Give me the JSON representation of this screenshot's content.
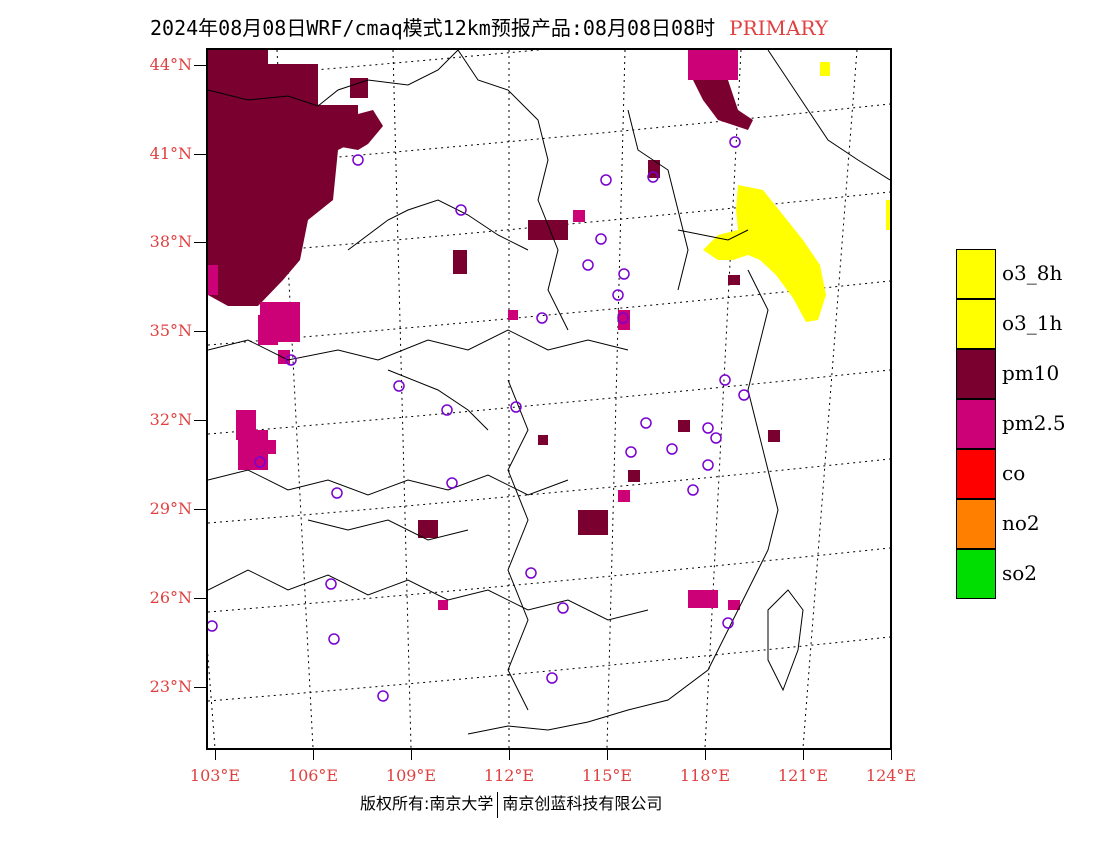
{
  "title": {
    "main": "2024年08月08日WRF/cmaq模式12km预报产品:08月08日08时",
    "tag": "PRIMARY"
  },
  "lat_labels": [
    "44°N",
    "41°N",
    "38°N",
    "35°N",
    "32°N",
    "29°N",
    "26°N",
    "23°N"
  ],
  "lon_labels": [
    "103°E",
    "106°E",
    "109°E",
    "112°E",
    "115°E",
    "118°E",
    "121°E",
    "124°E"
  ],
  "legend": [
    {
      "label": "o3_8h",
      "color": "#ffff00"
    },
    {
      "label": "o3_1h",
      "color": "#ffff00"
    },
    {
      "label": "pm10",
      "color": "#7a0030"
    },
    {
      "label": "pm2.5",
      "color": "#cc0077"
    },
    {
      "label": "co",
      "color": "#ff0000"
    },
    {
      "label": "no2",
      "color": "#ff7f00"
    },
    {
      "label": "so2",
      "color": "#00dd00"
    }
  ],
  "footer": {
    "left": "版权所有:南京大学",
    "right": "南京创蓝科技有限公司"
  },
  "colors": {
    "pm10": "#7a0030",
    "pm25": "#cc0077",
    "o3": "#ffff00",
    "station": "#7a00d0",
    "label": "#e04040"
  }
}
